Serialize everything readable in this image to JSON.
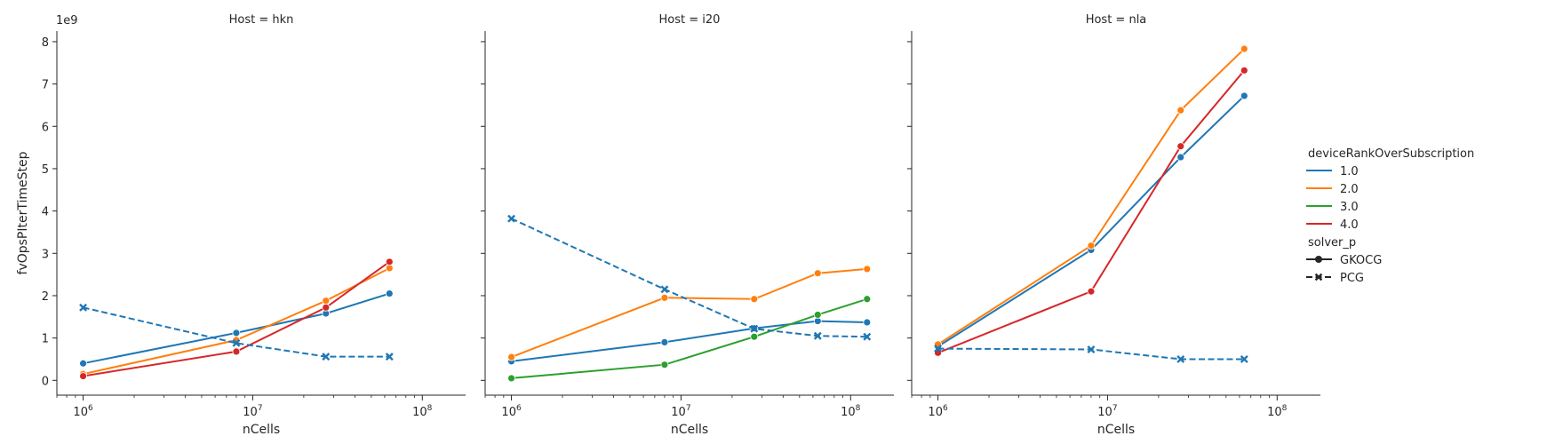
{
  "chart_data": {
    "type": "line",
    "xscale": "log",
    "xlabel": "nCells",
    "ylabel": "fvOpsPIterTimeStep",
    "y_multiplier_label": "1e9",
    "xlim": [
      700000,
      180000000
    ],
    "ylim": [
      -0.35,
      8.25
    ],
    "xticks": [
      {
        "value": 1000000,
        "base": "10",
        "exp": "6"
      },
      {
        "value": 10000000,
        "base": "10",
        "exp": "7"
      },
      {
        "value": 100000000,
        "base": "10",
        "exp": "8"
      }
    ],
    "yticks": [
      "0",
      "1",
      "2",
      "3",
      "4",
      "5",
      "6",
      "7",
      "8"
    ],
    "colors": {
      "1.0": "#1f77b4",
      "2.0": "#ff7f0e",
      "3.0": "#2ca02c",
      "4.0": "#d62728"
    },
    "legend": {
      "hue_title": "deviceRankOverSubscription",
      "hue_entries": [
        {
          "label": "1.0",
          "color": "#1f77b4"
        },
        {
          "label": "2.0",
          "color": "#ff7f0e"
        },
        {
          "label": "3.0",
          "color": "#2ca02c"
        },
        {
          "label": "4.0",
          "color": "#d62728"
        }
      ],
      "style_title": "solver_p",
      "style_entries": [
        {
          "label": "GKOCG",
          "marker": "circle",
          "dash": "solid"
        },
        {
          "label": "PCG",
          "marker": "x",
          "dash": "dashed"
        }
      ]
    },
    "panels": [
      {
        "title": "Host = hkn",
        "series": [
          {
            "hue": "1.0",
            "solver": "GKOCG",
            "x": [
              1000000,
              8000000,
              27000000,
              64000000
            ],
            "y": [
              0.4,
              1.12,
              1.58,
              2.05
            ]
          },
          {
            "hue": "2.0",
            "solver": "GKOCG",
            "x": [
              1000000,
              8000000,
              27000000,
              64000000
            ],
            "y": [
              0.15,
              0.95,
              1.88,
              2.65
            ]
          },
          {
            "hue": "4.0",
            "solver": "GKOCG",
            "x": [
              1000000,
              8000000,
              27000000,
              64000000
            ],
            "y": [
              0.1,
              0.68,
              1.72,
              2.8
            ]
          },
          {
            "hue": "1.0",
            "solver": "PCG",
            "x": [
              1000000,
              8000000,
              27000000,
              64000000
            ],
            "y": [
              1.72,
              0.88,
              0.56,
              0.56
            ]
          }
        ]
      },
      {
        "title": "Host = i20",
        "series": [
          {
            "hue": "1.0",
            "solver": "GKOCG",
            "x": [
              1000000,
              8000000,
              27000000,
              64000000,
              125000000
            ],
            "y": [
              0.45,
              0.9,
              1.23,
              1.4,
              1.37
            ]
          },
          {
            "hue": "2.0",
            "solver": "GKOCG",
            "x": [
              1000000,
              8000000,
              27000000,
              64000000,
              125000000
            ],
            "y": [
              0.55,
              1.95,
              1.92,
              2.53,
              2.63
            ]
          },
          {
            "hue": "3.0",
            "solver": "GKOCG",
            "x": [
              1000000,
              8000000,
              27000000,
              64000000,
              125000000
            ],
            "y": [
              0.05,
              0.37,
              1.03,
              1.55,
              1.92
            ]
          },
          {
            "hue": "1.0",
            "solver": "PCG",
            "x": [
              1000000,
              8000000,
              27000000,
              64000000,
              125000000
            ],
            "y": [
              3.82,
              2.15,
              1.22,
              1.05,
              1.03
            ]
          }
        ]
      },
      {
        "title": "Host = nla",
        "series": [
          {
            "hue": "1.0",
            "solver": "GKOCG",
            "x": [
              1000000,
              8000000,
              27000000,
              64000000
            ],
            "y": [
              0.8,
              3.08,
              5.27,
              6.72
            ]
          },
          {
            "hue": "2.0",
            "solver": "GKOCG",
            "x": [
              1000000,
              8000000,
              27000000,
              64000000
            ],
            "y": [
              0.85,
              3.18,
              6.38,
              7.83
            ]
          },
          {
            "hue": "4.0",
            "solver": "GKOCG",
            "x": [
              1000000,
              8000000,
              27000000,
              64000000
            ],
            "y": [
              0.65,
              2.1,
              5.53,
              7.32
            ]
          },
          {
            "hue": "1.0",
            "solver": "PCG",
            "x": [
              1000000,
              8000000,
              27000000,
              64000000
            ],
            "y": [
              0.75,
              0.73,
              0.5,
              0.5
            ]
          }
        ]
      }
    ]
  }
}
